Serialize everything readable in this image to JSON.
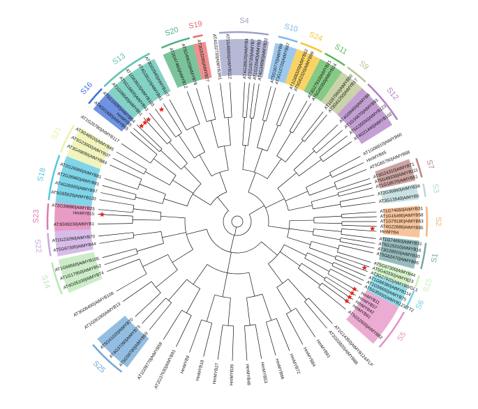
{
  "figure": {
    "clades": [
      {
        "id": "S4",
        "color": "#9da1c8",
        "start": -96,
        "end": -80
      },
      {
        "id": "S10",
        "color": "#7db7ea",
        "start": -78,
        "end": -71
      },
      {
        "id": "S24",
        "color": "#f7c532",
        "start": -71,
        "end": -63
      },
      {
        "id": "S11",
        "color": "#5cb85c",
        "start": -63,
        "end": -55
      },
      {
        "id": "S9",
        "color": "#b8c48e",
        "start": -55,
        "end": -47
      },
      {
        "id": "S12",
        "color": "#b07fc4",
        "start": -47,
        "end": -32
      },
      {
        "id": "S7",
        "color": "#b98582",
        "start": -20,
        "end": -13
      },
      {
        "id": "S3",
        "color": "#b8d7da",
        "start": -12,
        "end": -7
      },
      {
        "id": "S2",
        "color": "#f4b27c",
        "start": -5,
        "end": 5
      },
      {
        "id": "S1",
        "color": "#76a6a8",
        "start": 6,
        "end": 15
      },
      {
        "id": "S15",
        "color": "#c8f0b8",
        "start": 16,
        "end": 21
      },
      {
        "id": "S6",
        "color": "#6fd0e0",
        "start": 21,
        "end": 28
      },
      {
        "id": "S5",
        "color": "#e58fc4",
        "start": 28,
        "end": 42
      },
      {
        "id": "S25",
        "color": "#6fa8d8",
        "start": 127,
        "end": 140
      },
      {
        "id": "S14",
        "color": "#b9e6b4",
        "start": 157,
        "end": 168
      },
      {
        "id": "S22",
        "color": "#c9a6e0",
        "start": 169,
        "end": 177
      },
      {
        "id": "S23",
        "color": "#e07ab0",
        "start": 177,
        "end": 186
      },
      {
        "id": "S18",
        "color": "#55c7e0",
        "start": 186,
        "end": 201
      },
      {
        "id": "S21",
        "color": "#eef0a8",
        "start": 201,
        "end": 211
      },
      {
        "id": "S16",
        "color": "#3e6fd8",
        "start": 218,
        "end": 225
      },
      {
        "id": "S13",
        "color": "#5bc3b0",
        "start": 225,
        "end": 243
      },
      {
        "id": "S20",
        "color": "#4fb07a",
        "start": 246,
        "end": 256
      },
      {
        "id": "S19",
        "color": "#ea6a6a",
        "start": 256,
        "end": 260
      }
    ],
    "leaves": [
      {
        "label": "AT4G38620|AtMYB4",
        "angle": -87
      },
      {
        "label": "AT2G16720|AtMYB7",
        "angle": -85
      },
      {
        "label": "AT1G22640|AtMYB3",
        "angle": -83
      },
      {
        "label": "AT4G34990|AtMYB32",
        "angle": -81
      },
      {
        "label": "AT5G16770|AtMYB9",
        "angle": -76
      },
      {
        "label": "AT3G12720|AtMYB67",
        "angle": -74
      },
      {
        "label": "AT1G68320|AtMYB62",
        "angle": -68
      },
      {
        "label": "AT5G62320|AtMYB99",
        "angle": -66
      },
      {
        "label": "AT3G27810|AtMYB21",
        "angle": -60
      },
      {
        "label": "AT5G40350|AtMYB24",
        "angle": -58
      },
      {
        "label": "AT1G57560|AtMYB50",
        "angle": -52
      },
      {
        "label": "AT3G61250|AtMYB17",
        "angle": -50
      },
      {
        "label": "AT4G09460|AtMYB6",
        "angle": -44
      },
      {
        "label": "AT1G34670|AtMYB93",
        "angle": -41
      },
      {
        "label": "AT5G35550|AtMYB123",
        "angle": -38
      },
      {
        "label": "AT4G21440|AtMYB102",
        "angle": -35
      },
      {
        "label": "AT1G08810|AtMYB60",
        "angle": -28
      },
      {
        "label": "HmMYB65",
        "angle": -25
      },
      {
        "label": "AT5G65790|AtMYB68",
        "angle": -22
      },
      {
        "label": "AT3G24310|AtMYB71",
        "angle": -18
      },
      {
        "label": "AT5G49330|AtMYB111",
        "angle": -16
      },
      {
        "label": "AT1G18570|AtMYB51",
        "angle": -14
      },
      {
        "label": "AT2G36890|AtMYB38",
        "angle": -11
      },
      {
        "label": "AT3G13540|AtMYB5",
        "angle": -8
      },
      {
        "label": "AT1G74650|AtMYB31",
        "angle": -4
      },
      {
        "label": "AT1G16490|AtMYB58",
        "angle": -2
      },
      {
        "label": "AT1G79180|AtMYB63",
        "angle": 0
      },
      {
        "label": "AT4G22680|AtMYB85",
        "angle": 2
      },
      {
        "label": "HmMYB4",
        "angle": 4
      },
      {
        "label": "AT1G74650|AtMYB31",
        "angle": 7
      },
      {
        "label": "AT5G15310|AtMYB16",
        "angle": 9
      },
      {
        "label": "AT3G28910|AtMYB30",
        "angle": 11
      },
      {
        "label": "AT5G62470|AtMYB96",
        "angle": 13
      },
      {
        "label": "AT5G67300|AtMYB44",
        "angle": 17
      },
      {
        "label": "AT5G40330|AtMYB23",
        "angle": 19
      },
      {
        "label": "AT3G27920|AtMYB0/GL1",
        "angle": 21
      },
      {
        "label": "AT1G66380|AtMYB114",
        "angle": 23
      },
      {
        "label": "AT1G56650|AtMYB75",
        "angle": 25
      },
      {
        "label": "AT5G35550|AtMYB123/TT2",
        "angle": 27
      },
      {
        "label": "HmMYB11",
        "angle": 30
      },
      {
        "label": "HmMYB57",
        "angle": 32
      },
      {
        "label": "HmMYB42",
        "angle": 34
      },
      {
        "label": "HmMYB61",
        "angle": 36
      },
      {
        "label": "AT5G52600|AtMYB82",
        "angle": 39
      },
      {
        "label": "AT1G14350|AtMYB124/FLP",
        "angle": 47
      },
      {
        "label": "AT2G02820|AtMYB88",
        "angle": 50
      },
      {
        "label": "HmMYB91",
        "angle": 56
      },
      {
        "label": "HmMYB84",
        "angle": 62
      },
      {
        "label": "HmMYB72",
        "angle": 68
      },
      {
        "label": "HmMYB66",
        "angle": 74
      },
      {
        "label": "HmMYB53",
        "angle": 80
      },
      {
        "label": "HmMYB48",
        "angle": 86
      },
      {
        "label": "HmMYB39",
        "angle": 92
      },
      {
        "label": "HmMYB27",
        "angle": 98
      },
      {
        "label": "HmMYB18",
        "angle": 104
      },
      {
        "label": "HmMYB9",
        "angle": 110
      },
      {
        "label": "AT2G37630|AtMYB91",
        "angle": 116
      },
      {
        "label": "AT1G09770|AtMYB59",
        "angle": 122
      },
      {
        "label": "AT5G59780|AtMYB59",
        "angle": 129
      },
      {
        "label": "AT4G37260|AtMYB73",
        "angle": 133
      },
      {
        "label": "AT5G41020|AtMYB70",
        "angle": 137
      },
      {
        "label": "AT1G06180|AtMYB13",
        "angle": 145
      },
      {
        "label": "AT3G06490|AtMYB108",
        "angle": 150
      },
      {
        "label": "AT4G05100|AtMYB74",
        "angle": 159
      },
      {
        "label": "AT1G17950|AtMYB52",
        "angle": 162
      },
      {
        "label": "AT1G69560|AtMYB105",
        "angle": 165
      },
      {
        "label": "AT5G67300|AtMYB44",
        "angle": 171
      },
      {
        "label": "AT2G23290|AtMYB70",
        "angle": 174
      },
      {
        "label": "AT3G09230|AtMYB1",
        "angle": 179
      },
      {
        "label": "HmMYB15",
        "angle": 183
      },
      {
        "label": "AT2G39880|AtMYB25",
        "angle": 185
      },
      {
        "label": "AT5G55020|AtMYB120",
        "angle": 189
      },
      {
        "label": "AT4G26930|AtMYB97",
        "angle": 192
      },
      {
        "label": "AT2G26960|AtMYB81",
        "angle": 195
      },
      {
        "label": "AT2G26960|AtMYB81",
        "angle": 198
      },
      {
        "label": "AT3G49690|AtMYB84",
        "angle": 204
      },
      {
        "label": "AT5G23000|AtMYB37",
        "angle": 207
      },
      {
        "label": "AT3G48920|AtMYB45",
        "angle": 210
      },
      {
        "label": "AT1G26780|AtMYB117",
        "angle": 214
      },
      {
        "label": "AT4G01680|AtMYB55",
        "angle": 220
      },
      {
        "label": "HmMYB5",
        "angle": 222
      },
      {
        "label": "AT5G10280|AtMYB64",
        "angle": 224
      },
      {
        "label": "AT1G09540|AtMYB61",
        "angle": 228
      },
      {
        "label": "AT5G16600|AtMYB43",
        "angle": 231
      },
      {
        "label": "AT1G63910|AtMYB103",
        "angle": 234
      },
      {
        "label": "AT4G28110|AtMYB41",
        "angle": 238
      },
      {
        "label": "AT3G02940|AtMYB107",
        "angle": 241
      },
      {
        "label": "AT2G47460|AtMYB12",
        "angle": 249
      },
      {
        "label": "AT5G49620|AtMYB78",
        "angle": 253
      },
      {
        "label": "AT3G53200|AtMYB27",
        "angle": 258
      },
      {
        "label": "AT4G32730|AtMYB3R1",
        "angle": 263
      },
      {
        "label": "AT1G48000|AtMYB112",
        "angle": 267
      }
    ],
    "markers": [
      {
        "angle": 183
      },
      {
        "angle": 225
      },
      {
        "angle": 227
      },
      {
        "angle": 229
      },
      {
        "angle": 236
      },
      {
        "angle": 3
      },
      {
        "angle": 20
      },
      {
        "angle": 30
      },
      {
        "angle": 32
      },
      {
        "angle": 34
      },
      {
        "angle": 36
      }
    ]
  }
}
